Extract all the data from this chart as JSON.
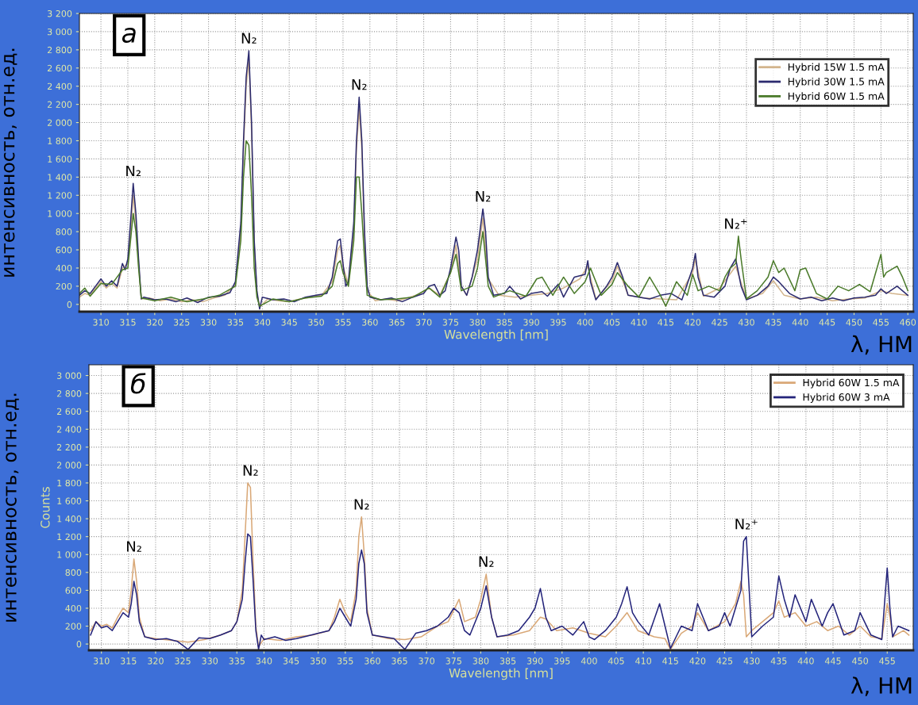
{
  "chart_data": [
    {
      "type": "line",
      "xlabel": "Wavelength [nm]",
      "ylabel": "интенсивность, отн.ед.",
      "annotations": [
        "а",
        "λ, НМ",
        {
          "text": "N₂",
          "x": 316,
          "y": 1330
        },
        {
          "text": "N₂",
          "x": 337.5,
          "y": 2790
        },
        {
          "text": "N₂",
          "x": 358,
          "y": 2280
        },
        {
          "text": "N₂",
          "x": 381,
          "y": 1050
        },
        {
          "text": "N₂⁺",
          "x": 428,
          "y": 750
        }
      ],
      "xlim": [
        306,
        461
      ],
      "ylim": [
        -80,
        3200
      ],
      "xticks": [
        310,
        315,
        320,
        325,
        330,
        335,
        340,
        345,
        350,
        355,
        360,
        365,
        370,
        375,
        380,
        385,
        390,
        395,
        400,
        405,
        410,
        415,
        420,
        425,
        430,
        435,
        440,
        445,
        450,
        455,
        460
      ],
      "yticks": [
        0,
        200,
        400,
        600,
        800,
        {
          "value": 1000,
          "label": "1 000"
        },
        {
          "value": 1200,
          "label": "1 200"
        },
        {
          "value": 1400,
          "label": "1 400"
        },
        {
          "value": 1600,
          "label": "1 600"
        },
        {
          "value": 1800,
          "label": "1 800"
        },
        {
          "value": 2000,
          "label": "2 000"
        },
        {
          "value": 2200,
          "label": "2 200"
        },
        {
          "value": 2400,
          "label": "2 400"
        },
        {
          "value": 2600,
          "label": "2 600"
        },
        {
          "value": 2800,
          "label": "2 800"
        },
        {
          "value": 3000,
          "label": "3 000"
        },
        {
          "value": 3200,
          "label": "3 200"
        }
      ],
      "grid": true,
      "legend": "top right",
      "marker": "none",
      "line_style": "solid",
      "series": [
        {
          "name": "Hybrid 15W 1.5 mA",
          "color": "#d2b48c",
          "x": [
            306,
            307,
            308,
            309,
            310,
            311,
            312,
            313,
            314,
            315,
            315.5,
            316,
            316.5,
            317,
            317.5,
            319,
            321,
            323,
            325,
            327,
            329,
            331,
            333,
            335,
            336,
            336.5,
            337,
            337.5,
            338,
            338.5,
            339,
            339.5,
            341,
            343,
            345,
            347,
            349,
            351,
            353,
            354,
            354.5,
            355,
            356,
            357,
            357.5,
            358,
            358.5,
            359,
            359.5,
            361,
            363,
            365,
            367,
            369,
            371,
            373,
            375,
            376,
            377,
            378,
            380,
            381,
            382,
            384,
            387,
            390,
            393,
            396,
            399,
            400.5,
            402,
            405,
            406,
            408,
            411,
            414,
            417,
            420,
            420.5,
            422,
            425,
            428,
            430,
            433,
            435,
            437,
            440,
            443,
            446,
            449,
            452,
            455,
            457,
            460
          ],
          "values": [
            80,
            120,
            100,
            180,
            250,
            180,
            230,
            180,
            400,
            450,
            800,
            1200,
            900,
            450,
            60,
            70,
            40,
            60,
            30,
            50,
            30,
            70,
            100,
            220,
            800,
            1700,
            2400,
            2700,
            1900,
            650,
            120,
            -30,
            60,
            40,
            30,
            60,
            80,
            100,
            250,
            600,
            650,
            420,
            220,
            800,
            1700,
            2150,
            1700,
            700,
            150,
            40,
            60,
            40,
            70,
            110,
            180,
            100,
            350,
            650,
            200,
            100,
            500,
            950,
            280,
            100,
            80,
            100,
            120,
            180,
            280,
            420,
            60,
            260,
            420,
            100,
            70,
            60,
            50,
            350,
            500,
            90,
            180,
            420,
            60,
            120,
            260,
            100,
            60,
            80,
            40,
            60,
            70,
            150,
            120,
            100
          ]
        },
        {
          "name": "Hybrid 30W 1.5 mA",
          "color": "#2b2a6e",
          "x": [
            306,
            307,
            308,
            309,
            310,
            311,
            312,
            313,
            314,
            314.5,
            315,
            315.5,
            316,
            316.5,
            317,
            317.5,
            318,
            320,
            322,
            324,
            326,
            328,
            330,
            332,
            334,
            335,
            336,
            336.5,
            337,
            337.5,
            338,
            338.5,
            339,
            339.5,
            340,
            342,
            344,
            346,
            348,
            350,
            352,
            353,
            354,
            354.5,
            355,
            355.5,
            356,
            357,
            357.5,
            358,
            358.5,
            359,
            359.5,
            360,
            362,
            364,
            366,
            368,
            370,
            371,
            372,
            373,
            374,
            375,
            376,
            376.5,
            377,
            378,
            379,
            380,
            381,
            381.5,
            382,
            383,
            385,
            386,
            388,
            390,
            392,
            393,
            395,
            396,
            398,
            400,
            400.5,
            401,
            402,
            404,
            405,
            406,
            407,
            408,
            410,
            412,
            414,
            416,
            418,
            420,
            420.5,
            421,
            422,
            424,
            426,
            427,
            428,
            429,
            430,
            432,
            434,
            435,
            436,
            438,
            440,
            442,
            444,
            446,
            448,
            450,
            452,
            454,
            455,
            456,
            458,
            460
          ],
          "values": [
            100,
            150,
            120,
            200,
            280,
            200,
            260,
            200,
            450,
            380,
            500,
            900,
            1330,
            1000,
            500,
            60,
            80,
            50,
            60,
            30,
            70,
            20,
            80,
            90,
            130,
            250,
            900,
            1800,
            2500,
            2790,
            2000,
            700,
            150,
            -50,
            80,
            50,
            60,
            30,
            80,
            100,
            120,
            300,
            700,
            720,
            450,
            200,
            250,
            900,
            1800,
            2280,
            1800,
            800,
            200,
            80,
            50,
            70,
            30,
            80,
            120,
            200,
            220,
            100,
            150,
            400,
            740,
            600,
            200,
            100,
            300,
            600,
            1050,
            800,
            300,
            100,
            120,
            200,
            60,
            120,
            140,
            90,
            220,
            80,
            300,
            330,
            480,
            250,
            50,
            200,
            300,
            460,
            300,
            100,
            80,
            60,
            100,
            120,
            50,
            400,
            560,
            300,
            100,
            80,
            200,
            400,
            500,
            200,
            50,
            100,
            200,
            300,
            250,
            120,
            60,
            80,
            40,
            70,
            40,
            70,
            80,
            100,
            170,
            120,
            200,
            100
          ]
        },
        {
          "name": "Hybrid 60W 1.5 mA",
          "color": "#4a7a2a",
          "x": [
            306,
            307,
            308,
            310,
            312,
            314,
            315,
            316,
            316.5,
            317,
            317.5,
            320,
            323,
            326,
            329,
            332,
            335,
            336,
            336.5,
            337,
            337.5,
            338,
            338.5,
            339,
            339.5,
            342,
            345,
            348,
            351,
            353,
            354,
            354.5,
            355,
            356,
            357,
            357.5,
            358,
            358.5,
            359,
            359.5,
            362,
            365,
            368,
            371,
            373,
            375,
            376,
            377,
            379,
            380,
            381,
            382,
            383,
            386,
            389,
            391,
            392,
            394,
            396,
            398,
            400,
            401,
            403,
            405,
            406,
            408,
            410,
            412,
            414,
            415,
            417,
            419,
            420,
            421,
            423,
            425,
            426,
            427,
            428,
            428.5,
            429,
            430,
            432,
            434,
            435,
            436,
            437,
            439,
            440,
            441,
            443,
            445,
            447,
            449,
            451,
            453,
            455,
            455.5,
            456,
            458,
            459,
            460
          ],
          "values": [
            120,
            180,
            90,
            230,
            220,
            380,
            400,
            1000,
            800,
            400,
            70,
            40,
            80,
            30,
            60,
            100,
            200,
            700,
            1400,
            1800,
            1750,
            1200,
            400,
            80,
            -20,
            60,
            30,
            70,
            90,
            200,
            450,
            480,
            350,
            200,
            700,
            1400,
            1400,
            1000,
            500,
            100,
            50,
            60,
            80,
            180,
            80,
            350,
            550,
            150,
            200,
            400,
            800,
            200,
            80,
            150,
            90,
            280,
            300,
            100,
            300,
            120,
            250,
            400,
            100,
            220,
            350,
            200,
            80,
            300,
            100,
            -20,
            250,
            100,
            330,
            150,
            200,
            150,
            300,
            400,
            450,
            750,
            500,
            60,
            150,
            300,
            480,
            350,
            400,
            150,
            380,
            400,
            120,
            60,
            200,
            150,
            220,
            140,
            550,
            300,
            350,
            420,
            300,
            150
          ]
        }
      ]
    },
    {
      "type": "line",
      "xlabel": "Wavelength [nm]",
      "ylabel": "Counts",
      "annotations": [
        "б",
        "λ, НМ",
        "интенсивность, отн.ед.",
        {
          "text": "N₂",
          "x": 316,
          "y": 950
        },
        {
          "text": "N₂",
          "x": 337.5,
          "y": 1800
        },
        {
          "text": "N₂",
          "x": 358,
          "y": 1420
        },
        {
          "text": "N₂",
          "x": 381,
          "y": 780
        },
        {
          "text": "N₂⁺",
          "x": 429,
          "y": 1200
        }
      ],
      "xlim": [
        307.7,
        459.8
      ],
      "ylim": [
        -70,
        3120
      ],
      "xticks": [
        310,
        315,
        320,
        325,
        330,
        335,
        340,
        345,
        350,
        355,
        360,
        365,
        370,
        375,
        380,
        385,
        390,
        395,
        400,
        405,
        410,
        415,
        420,
        425,
        430,
        435,
        440,
        445,
        450,
        455
      ],
      "yticks": [
        0,
        200,
        400,
        600,
        800,
        {
          "value": 1000,
          "label": "1 000"
        },
        {
          "value": 1200,
          "label": "1 200"
        },
        {
          "value": 1400,
          "label": "1 400"
        },
        {
          "value": 1600,
          "label": "1 600"
        },
        {
          "value": 1800,
          "label": "1 800"
        },
        {
          "value": 2000,
          "label": "2 000"
        },
        {
          "value": 2200,
          "label": "2 200"
        },
        {
          "value": 2400,
          "label": "2 400"
        },
        {
          "value": 2600,
          "label": "2 600"
        },
        {
          "value": 2800,
          "label": "2 800"
        },
        {
          "value": 3000,
          "label": "3 000"
        }
      ],
      "grid": true,
      "legend": "top right",
      "marker": "none",
      "line_style": "solid",
      "series": [
        {
          "name": "Hybrid 60W 1.5 mA",
          "color": "#d9a877",
          "x": [
            308,
            309,
            310,
            311,
            312,
            313,
            314,
            315,
            315.5,
            316,
            316.5,
            317,
            318,
            320,
            323,
            326,
            329,
            332,
            334,
            335,
            336,
            336.5,
            337,
            337.5,
            338,
            338.5,
            339,
            340,
            343,
            346,
            349,
            352,
            353,
            354,
            355,
            356,
            357,
            357.5,
            358,
            358.5,
            359,
            360,
            363,
            366,
            369,
            372,
            374,
            376,
            377,
            379,
            380,
            381,
            382,
            383,
            386,
            389,
            391,
            392,
            394,
            397,
            400,
            403,
            405,
            407,
            409,
            412,
            414,
            415,
            417,
            419,
            420,
            422,
            425,
            426,
            427,
            428,
            428.5,
            429,
            430,
            432,
            434,
            435,
            436,
            438,
            440,
            442,
            444,
            446,
            448,
            450,
            452,
            454,
            455,
            455.5,
            456,
            458,
            459
          ],
          "values": [
            150,
            250,
            200,
            220,
            180,
            300,
            400,
            350,
            600,
            950,
            700,
            300,
            80,
            60,
            40,
            20,
            50,
            100,
            150,
            250,
            600,
            1200,
            1800,
            1750,
            900,
            200,
            -30,
            60,
            40,
            80,
            100,
            150,
            300,
            500,
            350,
            250,
            600,
            1200,
            1420,
            1000,
            400,
            100,
            60,
            50,
            80,
            200,
            250,
            500,
            250,
            300,
            500,
            780,
            300,
            80,
            100,
            150,
            300,
            280,
            150,
            180,
            120,
            80,
            200,
            350,
            150,
            80,
            60,
            -60,
            120,
            200,
            350,
            150,
            250,
            350,
            450,
            700,
            550,
            80,
            150,
            250,
            350,
            480,
            300,
            350,
            200,
            250,
            150,
            200,
            100,
            200,
            80,
            60,
            450,
            300,
            80,
            150,
            100
          ]
        },
        {
          "name": "Hybrid 60W 3 mA",
          "color": "#23237a",
          "x": [
            308,
            309,
            310,
            311,
            312,
            313,
            314,
            315,
            315.5,
            316,
            316.5,
            317,
            318,
            320,
            322,
            324,
            326,
            328,
            330,
            332,
            334,
            335,
            336,
            336.5,
            337,
            337.5,
            338,
            338.5,
            339,
            339.5,
            340,
            342,
            344,
            346,
            348,
            350,
            352,
            353,
            354,
            355,
            356,
            357,
            357.5,
            358,
            358.5,
            359,
            360,
            362,
            364,
            366,
            368,
            370,
            372,
            374,
            375,
            376,
            377,
            378,
            380,
            381,
            382,
            383,
            385,
            387,
            389,
            390,
            391,
            392,
            393,
            395,
            397,
            399,
            400,
            401,
            403,
            405,
            406,
            407,
            408,
            409,
            411,
            413,
            414,
            415,
            417,
            419,
            420,
            421,
            422,
            424,
            425,
            426,
            427,
            428,
            428.5,
            429,
            430,
            432,
            434,
            435,
            436,
            437,
            438,
            440,
            441,
            443,
            444,
            445,
            447,
            449,
            450,
            452,
            454,
            455,
            455.5,
            456,
            457,
            459
          ],
          "values": [
            100,
            250,
            180,
            200,
            150,
            250,
            350,
            300,
            450,
            700,
            550,
            250,
            80,
            50,
            60,
            30,
            -60,
            70,
            60,
            100,
            150,
            250,
            500,
            900,
            1230,
            1200,
            700,
            150,
            -60,
            100,
            50,
            80,
            40,
            60,
            90,
            120,
            150,
            250,
            400,
            300,
            200,
            500,
            900,
            1050,
            900,
            350,
            100,
            80,
            60,
            -60,
            120,
            150,
            200,
            300,
            400,
            350,
            150,
            100,
            400,
            650,
            300,
            80,
            100,
            150,
            300,
            400,
            620,
            300,
            150,
            200,
            100,
            250,
            80,
            50,
            150,
            300,
            450,
            640,
            350,
            250,
            100,
            450,
            200,
            -50,
            200,
            150,
            450,
            300,
            150,
            200,
            350,
            200,
            400,
            600,
            1150,
            1200,
            80,
            200,
            300,
            760,
            500,
            300,
            550,
            250,
            500,
            200,
            350,
            450,
            100,
            150,
            350,
            100,
            50,
            850,
            400,
            80,
            200,
            150
          ]
        }
      ]
    }
  ]
}
